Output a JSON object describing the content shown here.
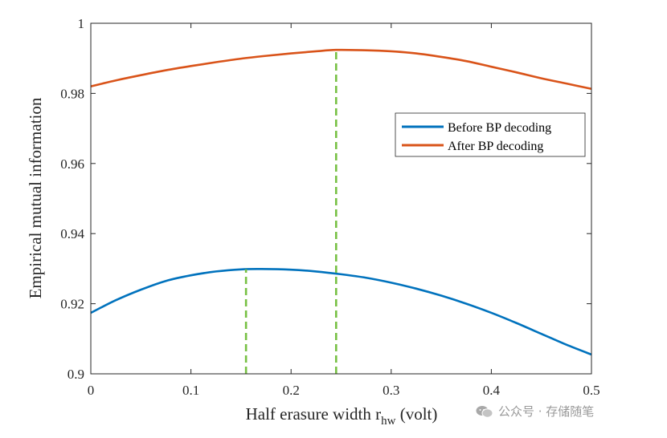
{
  "chart_data": {
    "type": "line",
    "title": "",
    "xlabel": "Half erasure width r",
    "xlabel_sub": "hw",
    "xlabel_suffix": " (volt)",
    "ylabel": "Empirical mutual information",
    "xlim": [
      0,
      0.5
    ],
    "ylim": [
      0.9,
      1.0
    ],
    "x_ticks": [
      0,
      0.1,
      0.2,
      0.3,
      0.4,
      0.5
    ],
    "x_tick_labels": [
      "0",
      "0.1",
      "0.2",
      "0.3",
      "0.4",
      "0.5"
    ],
    "y_ticks": [
      0.9,
      0.92,
      0.94,
      0.96,
      0.98,
      1.0
    ],
    "y_tick_labels": [
      "0.9",
      "0.92",
      "0.94",
      "0.96",
      "0.98",
      "1"
    ],
    "grid": false,
    "legend_position": "upper-right",
    "series": [
      {
        "name": "Before BP decoding",
        "color": "#0072BD",
        "x": [
          0,
          0.025,
          0.05,
          0.075,
          0.1,
          0.125,
          0.15,
          0.17,
          0.2,
          0.225,
          0.25,
          0.275,
          0.3,
          0.325,
          0.35,
          0.375,
          0.4,
          0.425,
          0.45,
          0.475,
          0.5
        ],
        "y": [
          0.9174,
          0.921,
          0.924,
          0.9265,
          0.9281,
          0.9292,
          0.9298,
          0.9299,
          0.9297,
          0.9292,
          0.9284,
          0.9274,
          0.926,
          0.9243,
          0.9223,
          0.92,
          0.9174,
          0.9145,
          0.9114,
          0.9083,
          0.9055
        ]
      },
      {
        "name": "After BP decoding",
        "color": "#D95319",
        "x": [
          0,
          0.025,
          0.05,
          0.075,
          0.1,
          0.125,
          0.15,
          0.175,
          0.2,
          0.225,
          0.245,
          0.275,
          0.3,
          0.325,
          0.35,
          0.375,
          0.4,
          0.425,
          0.45,
          0.475,
          0.5
        ],
        "y": [
          0.982,
          0.9837,
          0.9852,
          0.9866,
          0.9878,
          0.9889,
          0.9899,
          0.9907,
          0.9914,
          0.992,
          0.9924,
          0.9923,
          0.992,
          0.9914,
          0.9904,
          0.9892,
          0.9876,
          0.986,
          0.9843,
          0.9828,
          0.9813
        ]
      }
    ],
    "markers": [
      {
        "name": "Before BP optimum",
        "x": 0.155,
        "y_from": 0.9,
        "y_to": 0.9298,
        "color": "#77C043",
        "style": "dashed"
      },
      {
        "name": "After BP optimum",
        "x": 0.245,
        "y_from": 0.9,
        "y_to": 0.9924,
        "color": "#77C043",
        "style": "dashed"
      }
    ]
  },
  "watermark": {
    "icon": "wechat-icon",
    "text": "公众号 · 存储随笔"
  }
}
